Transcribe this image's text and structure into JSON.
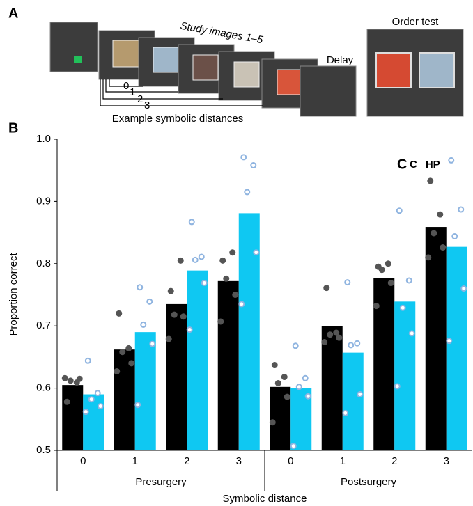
{
  "panel_a": {
    "label": "A",
    "study_label": "Study images 1–5",
    "delay_label": "Delay",
    "order_test_label": "Order test",
    "distance_caption": "Example symbolic distances",
    "distance_ticks": [
      "0",
      "1",
      "2",
      "3"
    ]
  },
  "chart_data": {
    "type": "bar",
    "panel_label": "B",
    "legend_label": "C",
    "ylabel": "Proportion correct",
    "xlabel": "Symbolic distance",
    "categories": [
      "0",
      "1",
      "2",
      "3",
      "0",
      "1",
      "2",
      "3"
    ],
    "groups": [
      "Presurgery",
      "Postsurgery"
    ],
    "ylim": [
      0.5,
      1.0
    ],
    "yticks": [
      0.5,
      0.6,
      0.7,
      0.8,
      0.9,
      {
        "value": 1.0,
        "label": "1.0"
      }
    ],
    "series": [
      {
        "name": "C",
        "color": "#000000",
        "point_color": "#555555",
        "values": [
          0.605,
          0.662,
          0.735,
          0.772,
          0.602,
          0.7,
          0.777,
          0.859
        ],
        "points": [
          [
            0.578,
            0.609,
            0.612,
            0.615,
            0.616
          ],
          [
            0.72,
            0.664,
            0.658,
            0.64,
            0.627
          ],
          [
            0.756,
            0.805,
            0.718,
            0.715,
            0.679
          ],
          [
            0.805,
            0.818,
            0.776,
            0.75,
            0.707
          ],
          [
            0.637,
            0.618,
            0.608,
            0.586,
            0.545
          ],
          [
            0.761,
            0.689,
            0.686,
            0.681,
            0.674
          ],
          [
            0.795,
            0.8,
            0.79,
            0.769,
            0.732
          ],
          [
            0.933,
            0.879,
            0.849,
            0.826,
            0.81
          ]
        ]
      },
      {
        "name": "HP",
        "color": "#0fc8f2",
        "point_color": "#8fb4e0",
        "values": [
          0.59,
          0.69,
          0.789,
          0.881,
          0.6,
          0.657,
          0.739,
          0.827
        ],
        "points": [
          [
            0.644,
            0.592,
            0.582,
            0.571,
            0.562
          ],
          [
            0.762,
            0.739,
            0.702,
            0.671,
            0.573
          ],
          [
            0.867,
            0.811,
            0.806,
            0.769,
            0.694
          ],
          [
            0.971,
            0.958,
            0.915,
            0.818,
            0.735
          ],
          [
            0.668,
            0.616,
            0.602,
            0.587,
            0.507
          ],
          [
            0.77,
            0.672,
            0.669,
            0.59,
            0.56
          ],
          [
            0.885,
            0.773,
            0.729,
            0.688,
            0.603
          ],
          [
            0.966,
            0.887,
            0.844,
            0.76,
            0.676
          ]
        ]
      }
    ]
  }
}
